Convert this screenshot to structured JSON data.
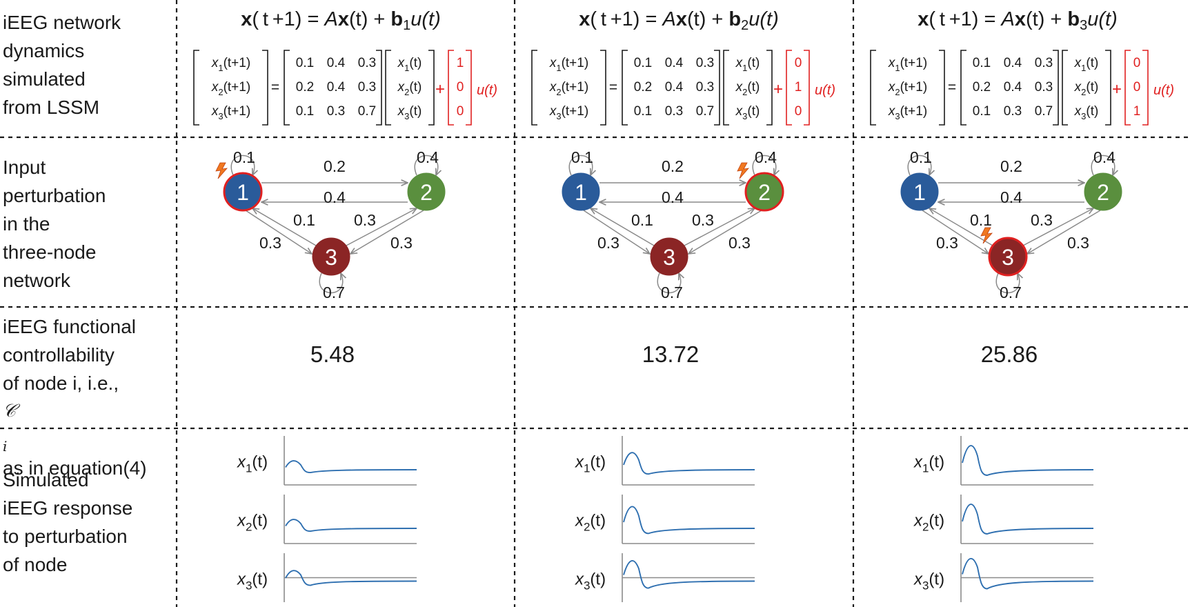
{
  "row_labels": {
    "dynamics": [
      "iEEG network",
      "dynamics",
      "simulated",
      "from LSSM"
    ],
    "perturbation": [
      "Input",
      "perturbation",
      "in the",
      "three-node",
      "network"
    ],
    "controllability": {
      "lines": [
        "iEEG functional",
        "controllability"
      ],
      "line3_prefix": "of node i, i.e., ",
      "symbol": "𝒞",
      "subscript": "i",
      "line4": "as in equation(4)"
    },
    "response": [
      "Simulated",
      "iEEG response",
      "to perturbation",
      "of node"
    ]
  },
  "equations": [
    {
      "lhs": "x(t+1)",
      "eq": "=",
      "A": "A",
      "x": "x(t)",
      "plus": "+",
      "b": "b",
      "b_sub": "1",
      "u": "u(t)"
    },
    {
      "lhs": "x(t+1)",
      "eq": "=",
      "A": "A",
      "x": "x(t)",
      "plus": "+",
      "b": "b",
      "b_sub": "2",
      "u": "u(t)"
    },
    {
      "lhs": "x(t+1)",
      "eq": "=",
      "A": "A",
      "x": "x(t)",
      "plus": "+",
      "b": "b",
      "b_sub": "3",
      "u": "u(t)"
    }
  ],
  "state_labels": {
    "lhs": [
      "x1(t+1)",
      "x2(t+1)",
      "x3(t+1)"
    ],
    "rhs": [
      "x1(t)",
      "x2(t)",
      "x3(t)"
    ]
  },
  "matrix_A": [
    [
      "0.1",
      "0.4",
      "0.3"
    ],
    [
      "0.2",
      "0.4",
      "0.3"
    ],
    [
      "0.1",
      "0.3",
      "0.7"
    ]
  ],
  "input_vectors": [
    [
      "1",
      "0",
      "0"
    ],
    [
      "0",
      "1",
      "0"
    ],
    [
      "0",
      "0",
      "1"
    ]
  ],
  "input_term": "u(t)",
  "network": {
    "nodes": [
      "1",
      "2",
      "3"
    ],
    "edge_labels": {
      "self1": "0.1",
      "self2": "0.4",
      "self3": "0.7",
      "e12": "0.2",
      "e21": "0.4",
      "e31_inner": "0.1",
      "e32_inner": "0.3",
      "e13_outer": "0.3",
      "e23_outer": "0.3"
    },
    "stimulated_node": [
      1,
      2,
      3
    ],
    "node_colors": {
      "1": "#2a5b9a",
      "2": "#5a8f3e",
      "3": "#8b2525"
    },
    "stim_ring_color": "#e02020",
    "bolt_color": "#f07820"
  },
  "controllability_values": [
    "5.48",
    "13.72",
    "25.86"
  ],
  "trace_labels": [
    "x1(t)",
    "x2(t)",
    "x3(t)"
  ],
  "trace_color": "#2e6fb0",
  "responses": [
    {
      "x1": 0.35,
      "x2": 0.35,
      "x3": 0.45
    },
    {
      "x1": 0.7,
      "x2": 0.9,
      "x3": 0.9
    },
    {
      "x1": 1.0,
      "x2": 1.0,
      "x3": 1.0
    }
  ]
}
